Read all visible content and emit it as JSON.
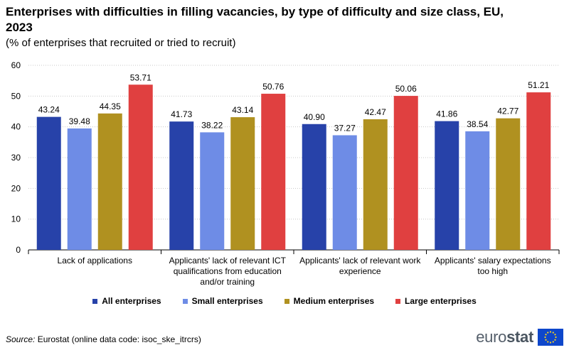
{
  "title": "Enterprises with difficulties in filling vacancies, by type of difficulty and size class, EU, 2023",
  "subtitle": "(% of enterprises that recruited or tried to recruit)",
  "source_label": "Source:",
  "source_text": "Eurostat (online data code: isoc_ske_itrcrs)",
  "logo": {
    "prefix": "euro",
    "suffix": "stat",
    "flag_icon": "eu-flag-icon"
  },
  "chart_data": {
    "type": "bar",
    "categories": [
      [
        "Lack of applications"
      ],
      [
        "Applicants' lack of relevant ICT",
        "qualifications from education",
        "and/or training"
      ],
      [
        "Applicants' lack of relevant work",
        "experience"
      ],
      [
        "Applicants' salary expectations",
        "too high"
      ]
    ],
    "series": [
      {
        "name": "All enterprises",
        "color": "#2742a9",
        "values": [
          43.24,
          41.73,
          40.9,
          41.86
        ],
        "labels": [
          "43.24",
          "41.73",
          "40.90",
          "41.86"
        ]
      },
      {
        "name": "Small enterprises",
        "color": "#6e8ce6",
        "values": [
          39.48,
          38.22,
          37.27,
          38.54
        ],
        "labels": [
          "39.48",
          "38.22",
          "37.27",
          "38.54"
        ]
      },
      {
        "name": "Medium enterprises",
        "color": "#b09120",
        "values": [
          44.35,
          43.14,
          42.47,
          42.77
        ],
        "labels": [
          "44.35",
          "43.14",
          "42.47",
          "42.77"
        ]
      },
      {
        "name": "Large enterprises",
        "color": "#e04040",
        "values": [
          53.71,
          50.76,
          50.06,
          51.21
        ],
        "labels": [
          "53.71",
          "50.76",
          "50.06",
          "51.21"
        ]
      }
    ],
    "ylim": [
      0,
      60
    ],
    "yticks": [
      0,
      10,
      20,
      30,
      40,
      50,
      60
    ],
    "grid": true,
    "legend": "bottom"
  }
}
